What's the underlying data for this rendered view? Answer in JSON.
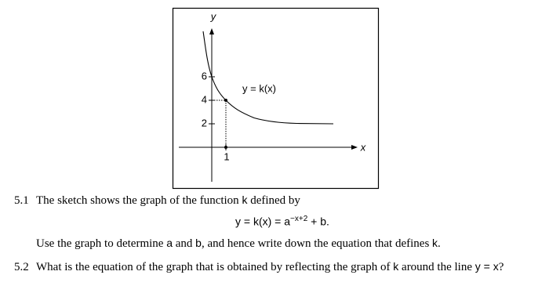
{
  "figure": {
    "y_axis_label": "y",
    "x_axis_label": "x",
    "y_ticks": [
      "2",
      "4",
      "6"
    ],
    "x_ticks": [
      "1"
    ],
    "curve_label": "y = k(x)"
  },
  "questions": [
    {
      "number": "5.1",
      "line1": [
        "The sketch shows the graph of the function ",
        "k",
        " defined by"
      ],
      "formula": [
        "y = k(x) = a",
        "−x+2",
        " + b."
      ],
      "line2": [
        "Use the graph to determine ",
        "a",
        " and ",
        "b",
        ", and hence write down the equation that defines ",
        "k",
        "."
      ]
    },
    {
      "number": "5.2",
      "line1": [
        "What is the equation of the graph that is obtained by reflecting the graph of ",
        "k",
        " around the line ",
        "y = x",
        "?"
      ]
    }
  ]
}
